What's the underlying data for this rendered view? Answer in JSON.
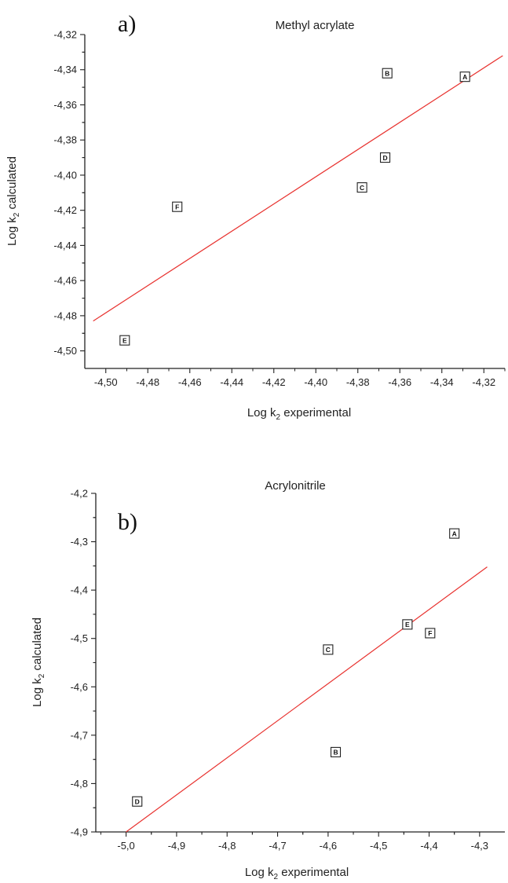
{
  "chart_data": [
    {
      "type": "scatter",
      "panel_label": "a)",
      "title": "Methyl acrylate",
      "xlabel": {
        "main": "Log k",
        "sub": "2",
        "rest": " experimental"
      },
      "ylabel": {
        "main": "Log k",
        "sub": "2",
        "rest": " calculated"
      },
      "xlim": [
        -4.51,
        -4.31
      ],
      "ylim": [
        -4.51,
        -4.32
      ],
      "xticks": [
        -4.5,
        -4.48,
        -4.46,
        -4.44,
        -4.42,
        -4.4,
        -4.38,
        -4.36,
        -4.34,
        -4.32
      ],
      "xticklabels": [
        "-4,50",
        "-4,48",
        "-4,46",
        "-4,44",
        "-4,42",
        "-4,40",
        "-4,38",
        "-4,36",
        "-4,34",
        "-4,32"
      ],
      "yticks": [
        -4.5,
        -4.48,
        -4.46,
        -4.44,
        -4.42,
        -4.4,
        -4.38,
        -4.36,
        -4.34,
        -4.32
      ],
      "yticklabels": [
        "-4,50",
        "-4,48",
        "-4,46",
        "-4,44",
        "-4,42",
        "-4,40",
        "-4,38",
        "-4,36",
        "-4,34",
        "-4,32"
      ],
      "minor_ticks": true,
      "points": [
        {
          "label": "A",
          "x": -4.329,
          "y": -4.344
        },
        {
          "label": "B",
          "x": -4.366,
          "y": -4.342
        },
        {
          "label": "C",
          "x": -4.378,
          "y": -4.407
        },
        {
          "label": "D",
          "x": -4.367,
          "y": -4.39
        },
        {
          "label": "E",
          "x": -4.491,
          "y": -4.494
        },
        {
          "label": "F",
          "x": -4.466,
          "y": -4.418
        }
      ],
      "fit_line": {
        "x": [
          -4.506,
          -4.311
        ],
        "y": [
          -4.483,
          -4.332
        ],
        "color": "#e8322f"
      },
      "grid": false
    },
    {
      "type": "scatter",
      "panel_label": "b)",
      "title": "Acrylonitrile",
      "xlabel": {
        "main": "Log k",
        "sub": "2",
        "rest": " experimental"
      },
      "ylabel": {
        "main": "Log k",
        "sub": "2",
        "rest": " calculated"
      },
      "xlim": [
        -5.06,
        -4.25
      ],
      "ylim": [
        -4.9,
        -4.2
      ],
      "xticks": [
        -5.0,
        -4.9,
        -4.8,
        -4.7,
        -4.6,
        -4.5,
        -4.4,
        -4.3
      ],
      "xticklabels": [
        "-5,0",
        "-4,9",
        "-4,8",
        "-4,7",
        "-4,6",
        "-4,5",
        "-4,4",
        "-4,3"
      ],
      "yticks": [
        -4.9,
        -4.8,
        -4.7,
        -4.6,
        -4.5,
        -4.4,
        -4.3,
        -4.2
      ],
      "yticklabels": [
        "-4,9",
        "-4,8",
        "-4,7",
        "-4,6",
        "-4,5",
        "-4,4",
        "-4,3",
        "-4,2"
      ],
      "minor_ticks": true,
      "points": [
        {
          "label": "A",
          "x": -4.35,
          "y": -4.283
        },
        {
          "label": "B",
          "x": -4.585,
          "y": -4.735
        },
        {
          "label": "C",
          "x": -4.6,
          "y": -4.523
        },
        {
          "label": "D",
          "x": -4.978,
          "y": -4.837
        },
        {
          "label": "E",
          "x": -4.443,
          "y": -4.471
        },
        {
          "label": "F",
          "x": -4.398,
          "y": -4.489
        }
      ],
      "fit_line": {
        "x": [
          -5.0,
          -4.285
        ],
        "y": [
          -4.9,
          -4.352
        ],
        "color": "#e8322f"
      },
      "grid": false
    }
  ]
}
